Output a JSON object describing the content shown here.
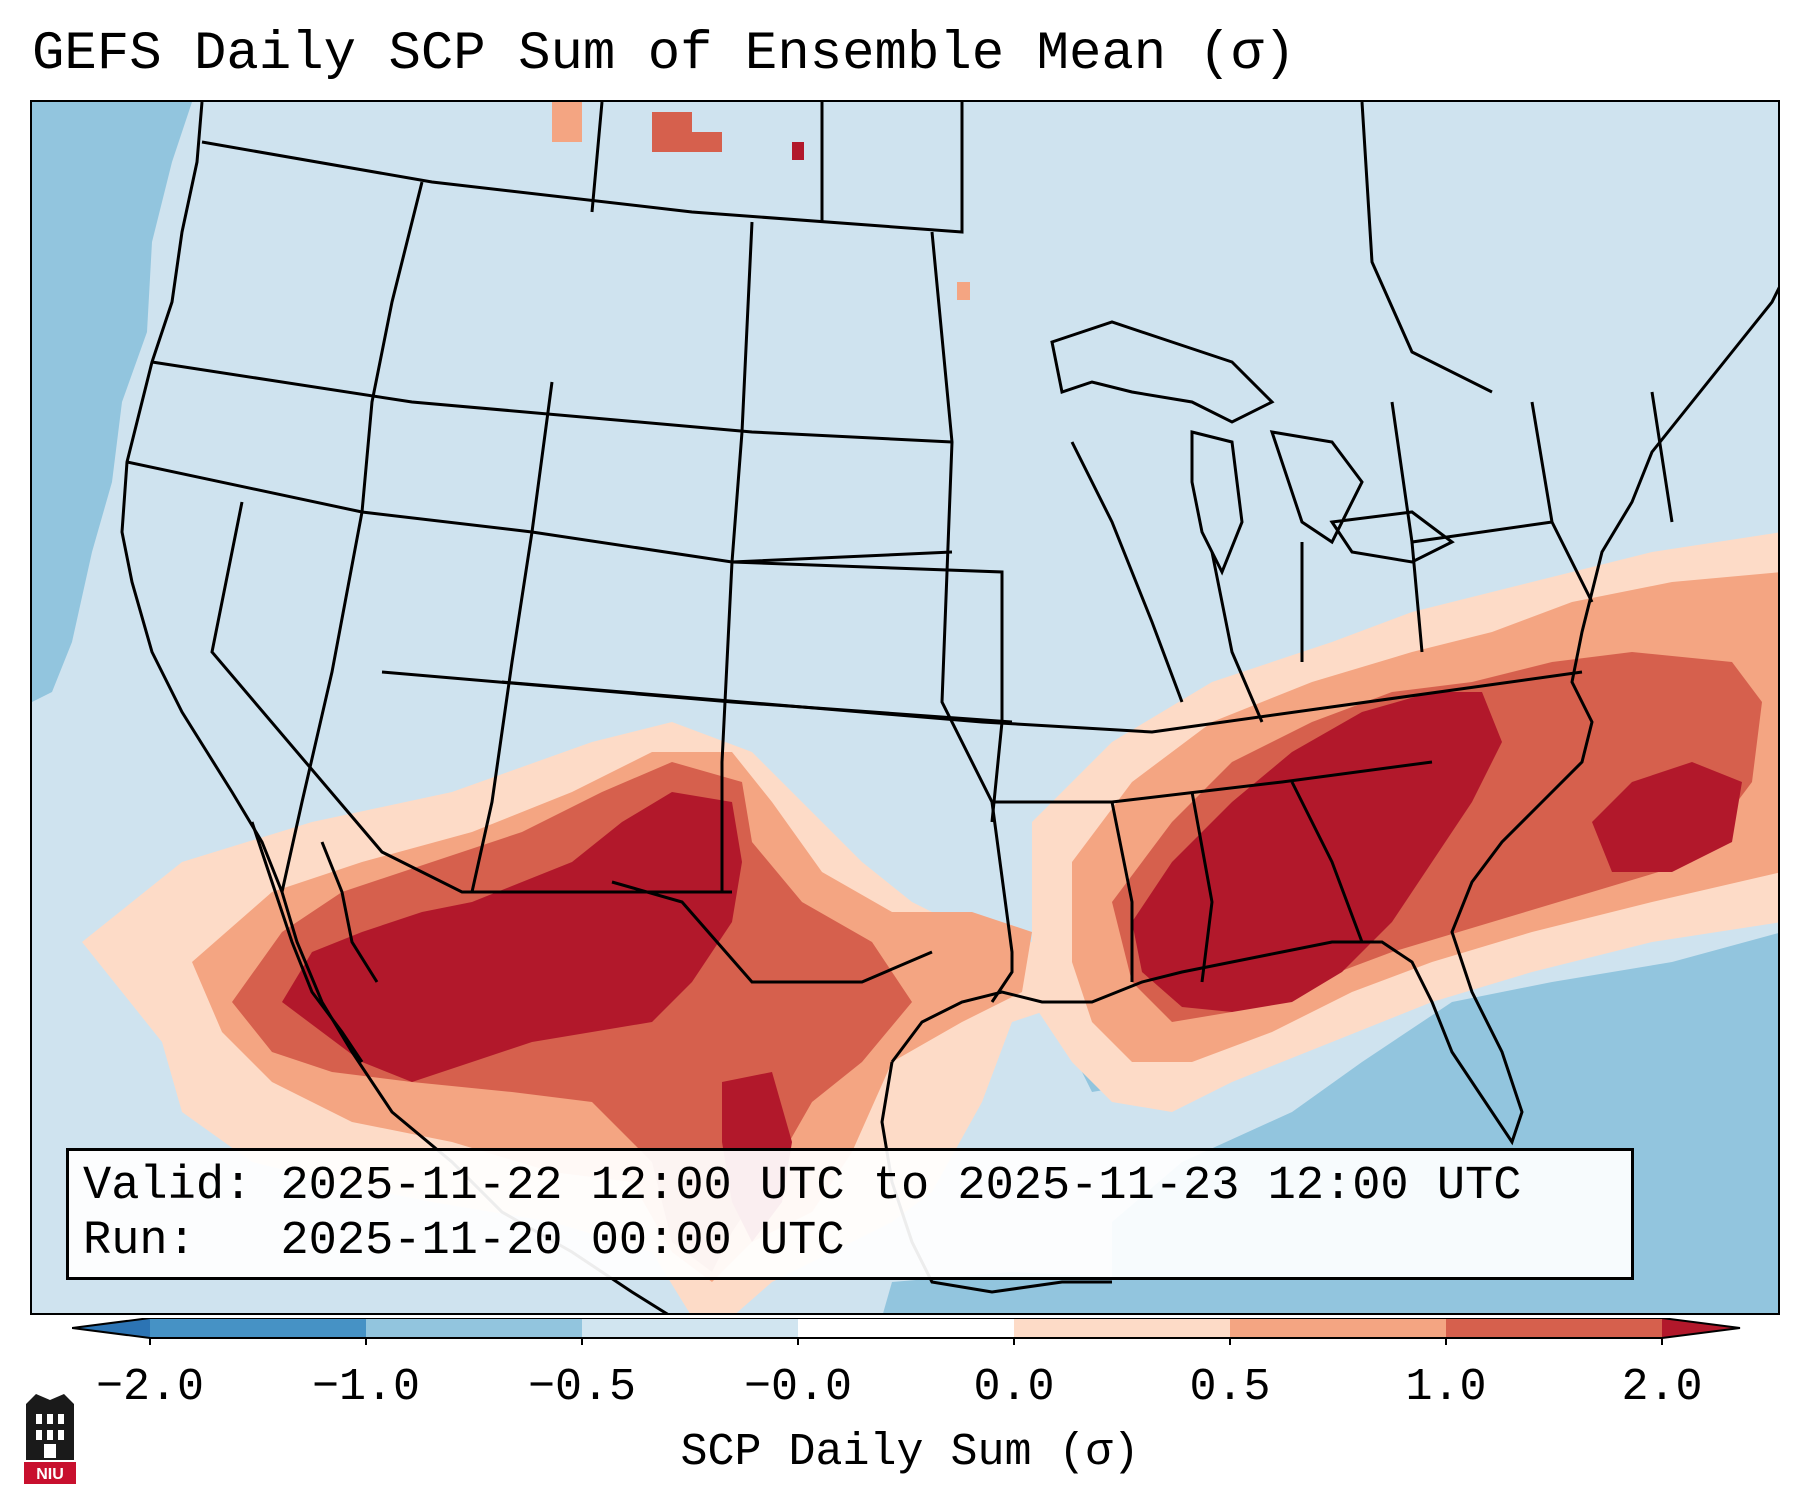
{
  "title": "GEFS Daily SCP Sum of Ensemble Mean (σ)",
  "info_box": {
    "valid_label": "Valid:",
    "valid_value": "2025-11-22 12:00 UTC to 2025-11-23 12:00 UTC",
    "run_label": "Run:",
    "run_value": "2025-11-20 00:00 UTC"
  },
  "colorbar": {
    "label": "SCP Daily Sum (σ)",
    "ticks": [
      "−2.0",
      "−1.0",
      "−0.5",
      "−0.0",
      "0.0",
      "0.5",
      "1.0",
      "2.0"
    ],
    "bins": [
      {
        "range": "< -2.0",
        "color": "#2c74b4"
      },
      {
        "range": "-2.0 to -1.0",
        "color": "#4692c5"
      },
      {
        "range": "-1.0 to -0.5",
        "color": "#92c5de"
      },
      {
        "range": "-0.5 to -0.0",
        "color": "#d1e5f0"
      },
      {
        "range": "-0.0 to 0.0",
        "color": "#ffffff"
      },
      {
        "range": "0.0 to 0.5",
        "color": "#fddbc7"
      },
      {
        "range": "0.5 to 1.0",
        "color": "#f4a582"
      },
      {
        "range": "1.0 to 2.0",
        "color": "#d6604d"
      },
      {
        "range": "> 2.0",
        "color": "#b2182b"
      }
    ]
  },
  "map": {
    "background_color": "#d1e5f0",
    "regions": [
      {
        "name": "southeast-core",
        "level": "> 2.0"
      },
      {
        "name": "southwest-core",
        "level": "> 2.0"
      },
      {
        "name": "atlantic-offshore",
        "level": "1.0 to 2.0"
      },
      {
        "name": "pacific-coast-band",
        "level": "-1.0 to -0.5"
      },
      {
        "name": "gulf-florida-band",
        "level": "-1.0 to -0.5"
      }
    ]
  },
  "logo": {
    "text": "NIU"
  }
}
